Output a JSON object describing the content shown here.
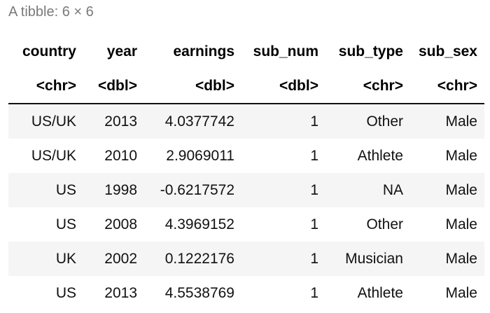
{
  "caption": "A tibble: 6 × 6",
  "columns": [
    {
      "name": "country",
      "type": "<chr>"
    },
    {
      "name": "year",
      "type": "<dbl>"
    },
    {
      "name": "earnings",
      "type": "<dbl>"
    },
    {
      "name": "sub_num",
      "type": "<dbl>"
    },
    {
      "name": "sub_type",
      "type": "<chr>"
    },
    {
      "name": "sub_sex",
      "type": "<chr>"
    }
  ],
  "rows": [
    [
      "US/UK",
      "2013",
      "4.0377742",
      "1",
      "Other",
      "Male"
    ],
    [
      "US/UK",
      "2010",
      "2.9069011",
      "1",
      "Athlete",
      "Male"
    ],
    [
      "US",
      "1998",
      "-0.6217572",
      "1",
      "NA",
      "Male"
    ],
    [
      "US",
      "2008",
      "4.3969152",
      "1",
      "Other",
      "Male"
    ],
    [
      "UK",
      "2002",
      "0.1222176",
      "1",
      "Musician",
      "Male"
    ],
    [
      "US",
      "2013",
      "4.5538769",
      "1",
      "Athlete",
      "Male"
    ]
  ]
}
